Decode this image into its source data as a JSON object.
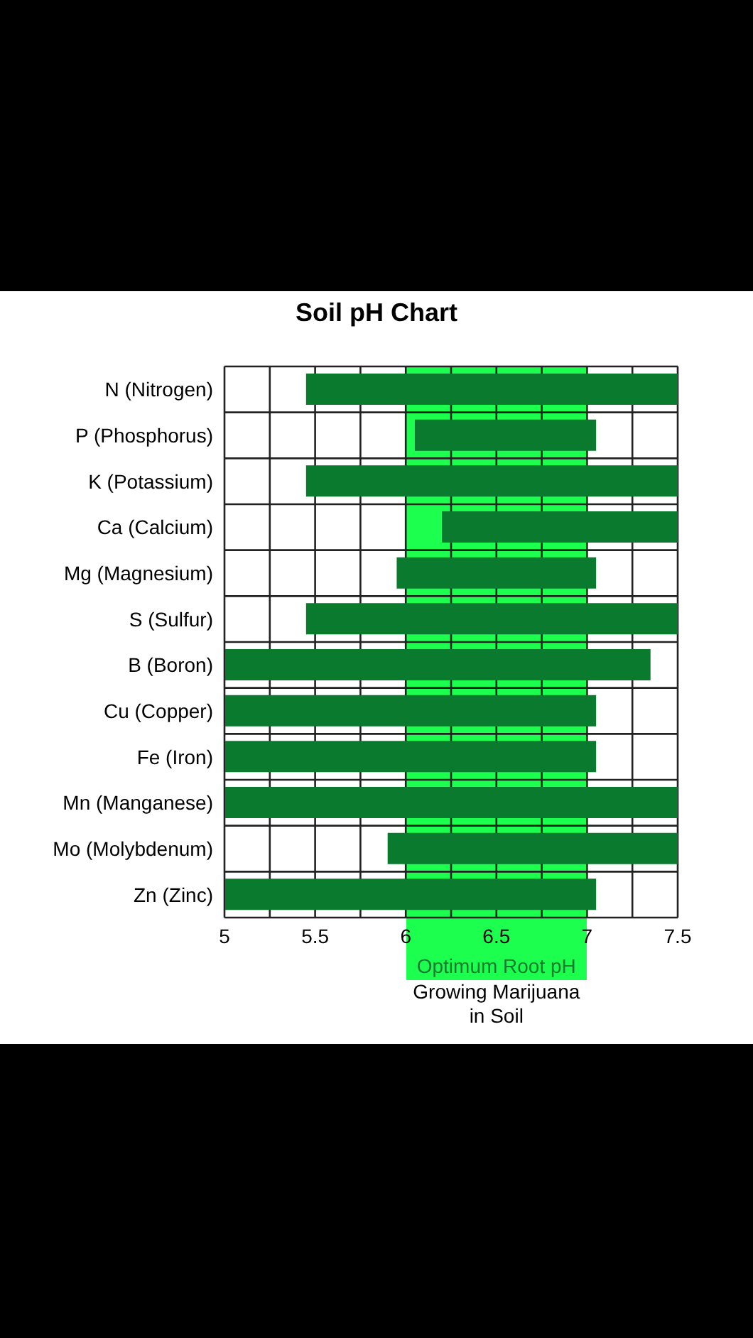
{
  "chart_data": {
    "type": "bar",
    "orientation": "horizontal",
    "title": "Soil pH Chart",
    "categories": [
      "N (Nitrogen)",
      "P (Phosphorus)",
      "K (Potassium)",
      "Ca (Calcium)",
      "Mg (Magnesium)",
      "S (Sulfur)",
      "B (Boron)",
      "Cu (Copper)",
      "Fe (Iron)",
      "Mn (Manganese)",
      "Mo (Molybdenum)",
      "Zn (Zinc)"
    ],
    "base": [
      5.45,
      6.05,
      5.45,
      6.2,
      5.95,
      5.45,
      5,
      5,
      5,
      5,
      5.9,
      5
    ],
    "values": [
      2.05,
      1,
      2.05,
      1.3,
      1.1,
      2.05,
      2.35,
      2.05,
      2.05,
      2.5,
      1.6,
      2.05
    ],
    "color": "#0a7a2e",
    "xlim": [
      5,
      7.5
    ],
    "xticks": [
      5,
      {
        "value": 5.25,
        "label": null
      },
      5.5,
      {
        "value": 5.75,
        "label": null
      },
      6,
      {
        "value": 6.25,
        "label": null
      },
      6.5,
      {
        "value": 6.75,
        "label": null
      },
      7,
      {
        "value": 7.25,
        "label": null
      },
      7.5
    ],
    "bands": [
      {
        "axis": "x",
        "from": 6,
        "to": 7,
        "label": "Optimum Root pH",
        "color": "#1cff4e"
      }
    ],
    "annotations": [
      "Growing Marijuana in Soil"
    ],
    "grid": true
  }
}
